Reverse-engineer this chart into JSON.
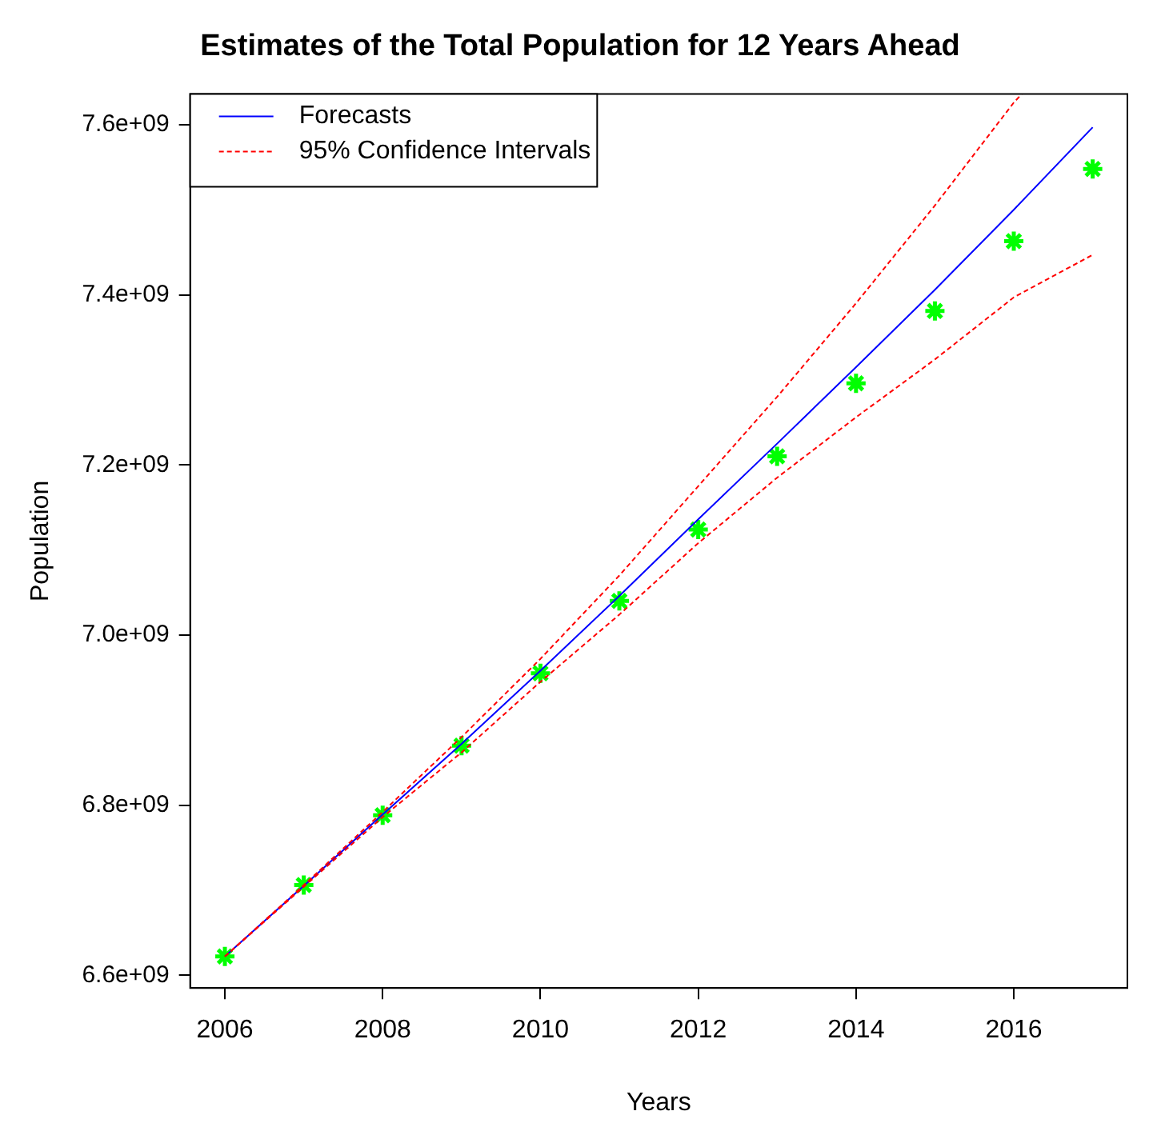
{
  "chart_data": {
    "type": "line",
    "title": "Estimates of the Total Population for 12 Years Ahead",
    "xlabel": "Years",
    "ylabel": "Population",
    "x": [
      2006,
      2007,
      2008,
      2009,
      2010,
      2011,
      2012,
      2013,
      2014,
      2015,
      2016,
      2017
    ],
    "series": [
      {
        "name": "Forecasts",
        "color": "#0000ff",
        "type": "line",
        "line_style": "solid",
        "marker": "none",
        "values": [
          6622000000.0,
          6705000000.0,
          6789000000.0,
          6872000000.0,
          6958000000.0,
          7046000000.0,
          7136000000.0,
          7225000000.0,
          7315000000.0,
          7406000000.0,
          7500000000.0,
          7597000000.0
        ]
      },
      {
        "name": "95% Confidence Intervals",
        "color": "#ff0000",
        "type": "line",
        "line_style": "dashed",
        "marker": "none",
        "x": [
          2006,
          2007,
          2008,
          2009,
          2010,
          2011,
          2012,
          2013,
          2014,
          2015,
          2016,
          2016.1
        ],
        "values": [
          6622000000.0,
          6706000000.0,
          6792000000.0,
          6880000000.0,
          6972000000.0,
          7070000000.0,
          7175000000.0,
          7280000000.0,
          7390000000.0,
          7505000000.0,
          7626000000.0,
          7636000000.0
        ]
      },
      {
        "color": "#ff0000",
        "type": "line",
        "line_style": "dashed",
        "marker": "none",
        "values": [
          6622000000.0,
          6704000000.0,
          6786000000.0,
          6862000000.0,
          6945000000.0,
          7024000000.0,
          7108000000.0,
          7185000000.0,
          7256000000.0,
          7324000000.0,
          7397000000.0,
          7447000000.0
        ]
      },
      {
        "color": "#00ff00",
        "type": "scatter",
        "marker": "cross",
        "values": [
          6622000000.0,
          6706000000.0,
          6788000000.0,
          6870000000.0,
          6955000000.0,
          7040000000.0,
          7124000000.0,
          7210000000.0,
          7296000000.0,
          7381000000.0,
          7463000000.0,
          7548000000.0
        ]
      }
    ],
    "xlim": [
      2005.56,
      2017.44
    ],
    "xticks": [
      2006,
      2008,
      2010,
      2012,
      2014,
      2016
    ],
    "ylim": [
      6585000000.0,
      7636000000.0
    ],
    "yticks": [
      {
        "value": 6600000000.0,
        "label": "6.6e+09"
      },
      {
        "value": 6800000000.0,
        "label": "6.8e+09"
      },
      {
        "value": 7000000000.0,
        "label": "7.0e+09"
      },
      {
        "value": 7200000000.0,
        "label": "7.2e+09"
      },
      {
        "value": 7400000000.0,
        "label": "7.4e+09"
      },
      {
        "value": 7600000000.0,
        "label": "7.6e+09"
      }
    ],
    "grid": false,
    "legend": "top left"
  }
}
